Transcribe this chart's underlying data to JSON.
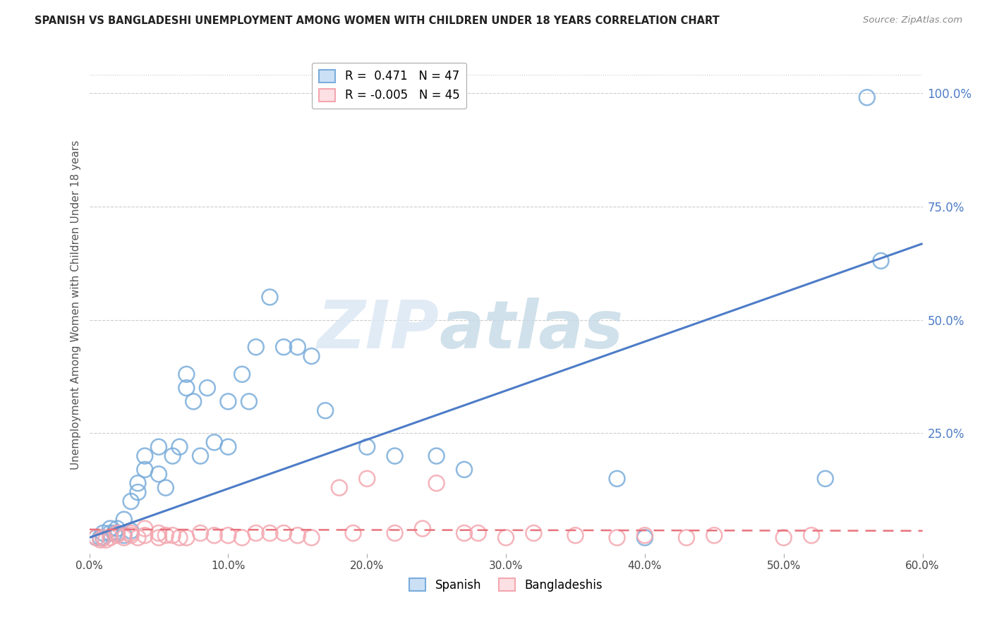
{
  "title": "SPANISH VS BANGLADESHI UNEMPLOYMENT AMONG WOMEN WITH CHILDREN UNDER 18 YEARS CORRELATION CHART",
  "source": "Source: ZipAtlas.com",
  "ylabel": "Unemployment Among Women with Children Under 18 years",
  "xlim": [
    0.0,
    0.6
  ],
  "ylim": [
    -0.015,
    1.08
  ],
  "xtick_labels": [
    "0.0%",
    "10.0%",
    "20.0%",
    "30.0%",
    "40.0%",
    "50.0%",
    "60.0%"
  ],
  "xtick_vals": [
    0.0,
    0.1,
    0.2,
    0.3,
    0.4,
    0.5,
    0.6
  ],
  "ytick_right_labels": [
    "100.0%",
    "75.0%",
    "50.0%",
    "25.0%"
  ],
  "ytick_right_vals": [
    1.0,
    0.75,
    0.5,
    0.25
  ],
  "grid_color": "#cccccc",
  "watermark_zip": "ZIP",
  "watermark_atlas": "atlas",
  "legend_r_spanish": " 0.471",
  "legend_n_spanish": "47",
  "legend_r_bangladeshi": "-0.005",
  "legend_n_bangladeshi": "45",
  "spanish_color": "#7aaddb",
  "bangladeshi_color": "#f4a7b0",
  "line_spanish_color": "#4d7cc7",
  "line_bangladeshi_color": "#e8737d",
  "spanish_x": [
    0.005,
    0.008,
    0.01,
    0.01,
    0.015,
    0.015,
    0.018,
    0.02,
    0.02,
    0.025,
    0.025,
    0.03,
    0.03,
    0.035,
    0.035,
    0.04,
    0.04,
    0.05,
    0.05,
    0.055,
    0.06,
    0.065,
    0.07,
    0.07,
    0.075,
    0.08,
    0.085,
    0.09,
    0.1,
    0.1,
    0.11,
    0.115,
    0.12,
    0.13,
    0.14,
    0.15,
    0.16,
    0.17,
    0.2,
    0.22,
    0.25,
    0.27,
    0.38,
    0.4,
    0.53,
    0.56,
    0.57
  ],
  "spanish_y": [
    0.02,
    0.02,
    0.03,
    0.02,
    0.03,
    0.04,
    0.03,
    0.03,
    0.04,
    0.025,
    0.06,
    0.035,
    0.1,
    0.12,
    0.14,
    0.17,
    0.2,
    0.16,
    0.22,
    0.13,
    0.2,
    0.22,
    0.35,
    0.38,
    0.32,
    0.2,
    0.35,
    0.23,
    0.32,
    0.22,
    0.38,
    0.32,
    0.44,
    0.55,
    0.44,
    0.44,
    0.42,
    0.3,
    0.22,
    0.2,
    0.2,
    0.17,
    0.15,
    0.02,
    0.15,
    0.99,
    0.63
  ],
  "bangladeshi_x": [
    0.005,
    0.008,
    0.01,
    0.012,
    0.015,
    0.02,
    0.02,
    0.025,
    0.03,
    0.03,
    0.035,
    0.04,
    0.04,
    0.05,
    0.05,
    0.055,
    0.06,
    0.065,
    0.07,
    0.08,
    0.09,
    0.1,
    0.11,
    0.12,
    0.13,
    0.14,
    0.15,
    0.16,
    0.18,
    0.19,
    0.2,
    0.22,
    0.24,
    0.25,
    0.27,
    0.28,
    0.3,
    0.32,
    0.35,
    0.38,
    0.4,
    0.43,
    0.45,
    0.5,
    0.52
  ],
  "bangladeshi_y": [
    0.02,
    0.015,
    0.02,
    0.015,
    0.02,
    0.025,
    0.03,
    0.02,
    0.025,
    0.03,
    0.02,
    0.025,
    0.04,
    0.02,
    0.03,
    0.025,
    0.025,
    0.02,
    0.02,
    0.03,
    0.025,
    0.025,
    0.02,
    0.03,
    0.03,
    0.03,
    0.025,
    0.02,
    0.13,
    0.03,
    0.15,
    0.03,
    0.04,
    0.14,
    0.03,
    0.03,
    0.02,
    0.03,
    0.025,
    0.02,
    0.025,
    0.02,
    0.025,
    0.02,
    0.025
  ],
  "background_color": "#ffffff",
  "line_spanish_intercept": 0.02,
  "line_spanish_slope": 1.08,
  "line_bangladeshi_intercept": 0.038,
  "line_bangladeshi_slope": -0.005
}
